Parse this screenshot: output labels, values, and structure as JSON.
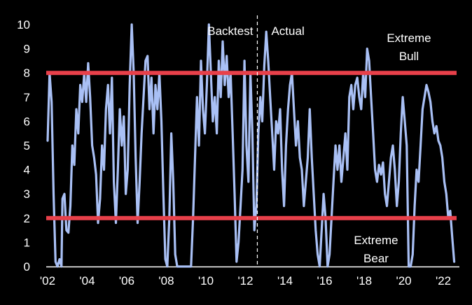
{
  "chart_data": {
    "type": "line",
    "title": "",
    "xlabel": "",
    "ylabel": "",
    "xlim": [
      2002.0,
      2022.6
    ],
    "ylim": [
      0,
      10
    ],
    "grid": false,
    "legend": "none",
    "yticks": [
      "0",
      "1",
      "2",
      "3",
      "4",
      "5",
      "6",
      "7",
      "8",
      "9",
      "10"
    ],
    "xticks": [
      {
        "year": 2002,
        "label": "'02"
      },
      {
        "year": 2004,
        "label": "'04"
      },
      {
        "year": 2006,
        "label": "'06"
      },
      {
        "year": 2008,
        "label": "'08"
      },
      {
        "year": 2010,
        "label": "'10"
      },
      {
        "year": 2012,
        "label": "'12"
      },
      {
        "year": 2014,
        "label": "'14"
      },
      {
        "year": 2016,
        "label": "'16"
      },
      {
        "year": 2018,
        "label": "'18"
      },
      {
        "year": 2020,
        "label": "'20"
      },
      {
        "year": 2022,
        "label": "'22"
      }
    ],
    "thresholds": [
      {
        "value": 8,
        "label_lines": [
          "Extreme",
          "Bull"
        ],
        "color": "#e8404a"
      },
      {
        "value": 2,
        "label_lines": [
          "Extreme",
          "Bear"
        ],
        "color": "#e8404a"
      }
    ],
    "divider": {
      "year": 2012.6,
      "left_label": "Backtest",
      "right_label": "Actual"
    },
    "colors": {
      "background": "#000000",
      "series": "#a9c0f5",
      "threshold": "#e8404a",
      "axis": "#ffffff"
    },
    "series": [
      {
        "values": [
          [
            2002.0,
            5.2
          ],
          [
            2002.1,
            8.0
          ],
          [
            2002.2,
            6.8
          ],
          [
            2002.3,
            3.0
          ],
          [
            2002.4,
            0.2
          ],
          [
            2002.5,
            0.0
          ],
          [
            2002.6,
            0.3
          ],
          [
            2002.7,
            0.0
          ],
          [
            2002.75,
            2.8
          ],
          [
            2002.85,
            3.0
          ],
          [
            2002.95,
            1.5
          ],
          [
            2003.05,
            1.4
          ],
          [
            2003.15,
            2.5
          ],
          [
            2003.25,
            5.0
          ],
          [
            2003.35,
            4.2
          ],
          [
            2003.45,
            6.5
          ],
          [
            2003.55,
            5.5
          ],
          [
            2003.65,
            7.5
          ],
          [
            2003.75,
            6.8
          ],
          [
            2003.85,
            8.0
          ],
          [
            2003.95,
            6.8
          ],
          [
            2004.05,
            8.4
          ],
          [
            2004.15,
            7.0
          ],
          [
            2004.25,
            5.0
          ],
          [
            2004.35,
            4.5
          ],
          [
            2004.45,
            3.8
          ],
          [
            2004.55,
            1.8
          ],
          [
            2004.65,
            2.8
          ],
          [
            2004.75,
            5.0
          ],
          [
            2004.85,
            4.0
          ],
          [
            2004.95,
            6.5
          ],
          [
            2005.05,
            7.5
          ],
          [
            2005.15,
            5.5
          ],
          [
            2005.25,
            7.8
          ],
          [
            2005.35,
            3.5
          ],
          [
            2005.45,
            1.8
          ],
          [
            2005.55,
            4.0
          ],
          [
            2005.65,
            6.5
          ],
          [
            2005.75,
            5.0
          ],
          [
            2005.85,
            6.2
          ],
          [
            2005.95,
            3.0
          ],
          [
            2006.05,
            4.0
          ],
          [
            2006.15,
            7.5
          ],
          [
            2006.25,
            10.0
          ],
          [
            2006.35,
            8.0
          ],
          [
            2006.45,
            4.5
          ],
          [
            2006.55,
            1.8
          ],
          [
            2006.65,
            3.5
          ],
          [
            2006.75,
            5.5
          ],
          [
            2006.85,
            7.0
          ],
          [
            2006.95,
            8.5
          ],
          [
            2007.05,
            8.7
          ],
          [
            2007.15,
            6.5
          ],
          [
            2007.25,
            7.8
          ],
          [
            2007.35,
            5.5
          ],
          [
            2007.45,
            7.5
          ],
          [
            2007.55,
            6.5
          ],
          [
            2007.65,
            8.0
          ],
          [
            2007.75,
            6.0
          ],
          [
            2007.85,
            3.0
          ],
          [
            2007.95,
            0.3
          ],
          [
            2008.05,
            0.0
          ],
          [
            2008.15,
            2.0
          ],
          [
            2008.25,
            5.5
          ],
          [
            2008.35,
            3.5
          ],
          [
            2008.45,
            0.5
          ],
          [
            2008.55,
            0.0
          ],
          [
            2008.8,
            0.0
          ],
          [
            2009.05,
            0.0
          ],
          [
            2009.25,
            0.0
          ],
          [
            2009.35,
            2.0
          ],
          [
            2009.45,
            4.5
          ],
          [
            2009.55,
            7.0
          ],
          [
            2009.65,
            5.0
          ],
          [
            2009.75,
            8.5
          ],
          [
            2009.85,
            6.5
          ],
          [
            2009.95,
            5.5
          ],
          [
            2010.05,
            7.5
          ],
          [
            2010.15,
            10.0
          ],
          [
            2010.25,
            8.0
          ],
          [
            2010.35,
            6.0
          ],
          [
            2010.45,
            7.0
          ],
          [
            2010.55,
            5.5
          ],
          [
            2010.65,
            8.5
          ],
          [
            2010.75,
            7.0
          ],
          [
            2010.85,
            9.3
          ],
          [
            2010.95,
            7.5
          ],
          [
            2011.05,
            8.7
          ],
          [
            2011.15,
            7.0
          ],
          [
            2011.25,
            8.0
          ],
          [
            2011.35,
            5.5
          ],
          [
            2011.45,
            3.0
          ],
          [
            2011.55,
            0.2
          ],
          [
            2011.65,
            1.0
          ],
          [
            2011.75,
            2.5
          ],
          [
            2011.85,
            4.0
          ],
          [
            2011.95,
            8.5
          ],
          [
            2012.05,
            5.0
          ],
          [
            2012.15,
            3.5
          ],
          [
            2012.25,
            8.0
          ],
          [
            2012.35,
            5.5
          ],
          [
            2012.45,
            1.5
          ],
          [
            2012.55,
            2.5
          ],
          [
            2012.65,
            5.5
          ],
          [
            2012.75,
            7.0
          ],
          [
            2012.85,
            6.0
          ],
          [
            2012.95,
            8.3
          ],
          [
            2013.05,
            9.7
          ],
          [
            2013.15,
            8.5
          ],
          [
            2013.25,
            7.0
          ],
          [
            2013.35,
            5.5
          ],
          [
            2013.45,
            4.0
          ],
          [
            2013.55,
            6.0
          ],
          [
            2013.65,
            5.5
          ],
          [
            2013.75,
            6.5
          ],
          [
            2013.85,
            4.0
          ],
          [
            2013.95,
            2.5
          ],
          [
            2014.05,
            5.0
          ],
          [
            2014.15,
            6.5
          ],
          [
            2014.25,
            7.5
          ],
          [
            2014.35,
            8.0
          ],
          [
            2014.45,
            6.5
          ],
          [
            2014.55,
            5.0
          ],
          [
            2014.65,
            6.0
          ],
          [
            2014.75,
            4.5
          ],
          [
            2014.85,
            4.0
          ],
          [
            2014.95,
            2.5
          ],
          [
            2015.05,
            3.5
          ],
          [
            2015.15,
            4.5
          ],
          [
            2015.25,
            6.5
          ],
          [
            2015.35,
            4.5
          ],
          [
            2015.45,
            3.0
          ],
          [
            2015.55,
            1.5
          ],
          [
            2015.65,
            0.5
          ],
          [
            2015.75,
            0.0
          ],
          [
            2015.85,
            1.5
          ],
          [
            2015.95,
            3.0
          ],
          [
            2016.05,
            2.0
          ],
          [
            2016.15,
            0.0
          ],
          [
            2016.25,
            0.5
          ],
          [
            2016.35,
            2.0
          ],
          [
            2016.45,
            3.5
          ],
          [
            2016.55,
            5.0
          ],
          [
            2016.65,
            4.0
          ],
          [
            2016.75,
            5.0
          ],
          [
            2016.85,
            3.5
          ],
          [
            2016.95,
            4.5
          ],
          [
            2017.05,
            5.5
          ],
          [
            2017.15,
            4.0
          ],
          [
            2017.25,
            7.0
          ],
          [
            2017.35,
            7.5
          ],
          [
            2017.45,
            6.5
          ],
          [
            2017.55,
            7.5
          ],
          [
            2017.65,
            7.8
          ],
          [
            2017.75,
            7.0
          ],
          [
            2017.85,
            6.5
          ],
          [
            2017.95,
            8.0
          ],
          [
            2018.05,
            7.0
          ],
          [
            2018.15,
            9.0
          ],
          [
            2018.25,
            8.5
          ],
          [
            2018.35,
            7.0
          ],
          [
            2018.45,
            5.5
          ],
          [
            2018.55,
            4.0
          ],
          [
            2018.65,
            3.5
          ],
          [
            2018.75,
            4.2
          ],
          [
            2018.85,
            3.8
          ],
          [
            2018.95,
            4.3
          ],
          [
            2019.05,
            3.0
          ],
          [
            2019.15,
            2.5
          ],
          [
            2019.25,
            3.5
          ],
          [
            2019.35,
            4.5
          ],
          [
            2019.45,
            5.0
          ],
          [
            2019.55,
            4.0
          ],
          [
            2019.65,
            2.5
          ],
          [
            2019.75,
            3.5
          ],
          [
            2019.85,
            5.5
          ],
          [
            2019.95,
            7.0
          ],
          [
            2020.05,
            6.0
          ],
          [
            2020.15,
            5.0
          ],
          [
            2020.25,
            0.0
          ],
          [
            2020.35,
            0.0
          ],
          [
            2020.45,
            0.5
          ],
          [
            2020.55,
            2.5
          ],
          [
            2020.65,
            4.0
          ],
          [
            2020.75,
            3.5
          ],
          [
            2020.85,
            5.0
          ],
          [
            2020.95,
            6.5
          ],
          [
            2021.05,
            7.0
          ],
          [
            2021.15,
            7.5
          ],
          [
            2021.25,
            7.2
          ],
          [
            2021.35,
            6.8
          ],
          [
            2021.45,
            6.0
          ],
          [
            2021.55,
            5.5
          ],
          [
            2021.65,
            5.8
          ],
          [
            2021.75,
            5.2
          ],
          [
            2021.85,
            5.0
          ],
          [
            2021.95,
            4.5
          ],
          [
            2022.05,
            3.5
          ],
          [
            2022.15,
            3.0
          ],
          [
            2022.25,
            2.0
          ],
          [
            2022.35,
            2.3
          ],
          [
            2022.45,
            1.2
          ],
          [
            2022.55,
            0.2
          ]
        ]
      }
    ]
  }
}
